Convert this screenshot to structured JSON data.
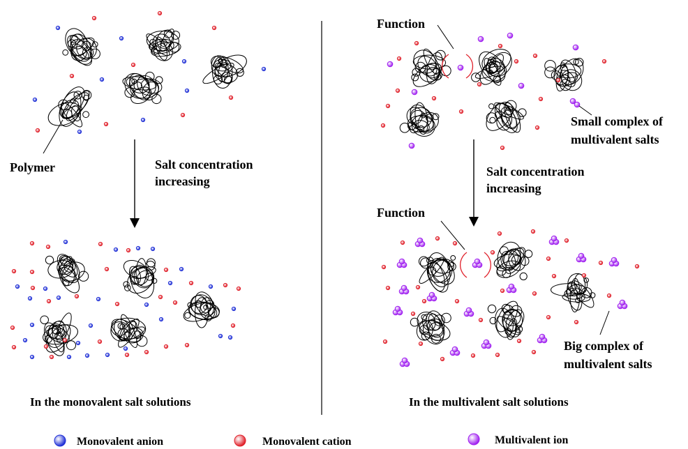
{
  "labels": {
    "polymer": "Polymer",
    "salt_increasing_left_1": "Salt concentration",
    "salt_increasing_left_2": "increasing",
    "salt_increasing_right_1": "Salt concentration",
    "salt_increasing_right_2": "increasing",
    "function_top": "Function",
    "function_bottom": "Function",
    "small_complex_1": "Small complex of",
    "small_complex_2": "multivalent salts",
    "big_complex_1": "Big complex of",
    "big_complex_2": "multivalent salts"
  },
  "captions": {
    "left": "In the monovalent salt solutions",
    "right": "In the multivalent salt solutions"
  },
  "legend": {
    "anion": "Monovalent anion",
    "cation": "Monovalent cation",
    "multivalent": "Multivalent ion"
  },
  "colors": {
    "anion": "#1f2fd6",
    "cation": "#e0202a",
    "multivalent": "#a020f0",
    "polymer": "#000000"
  }
}
